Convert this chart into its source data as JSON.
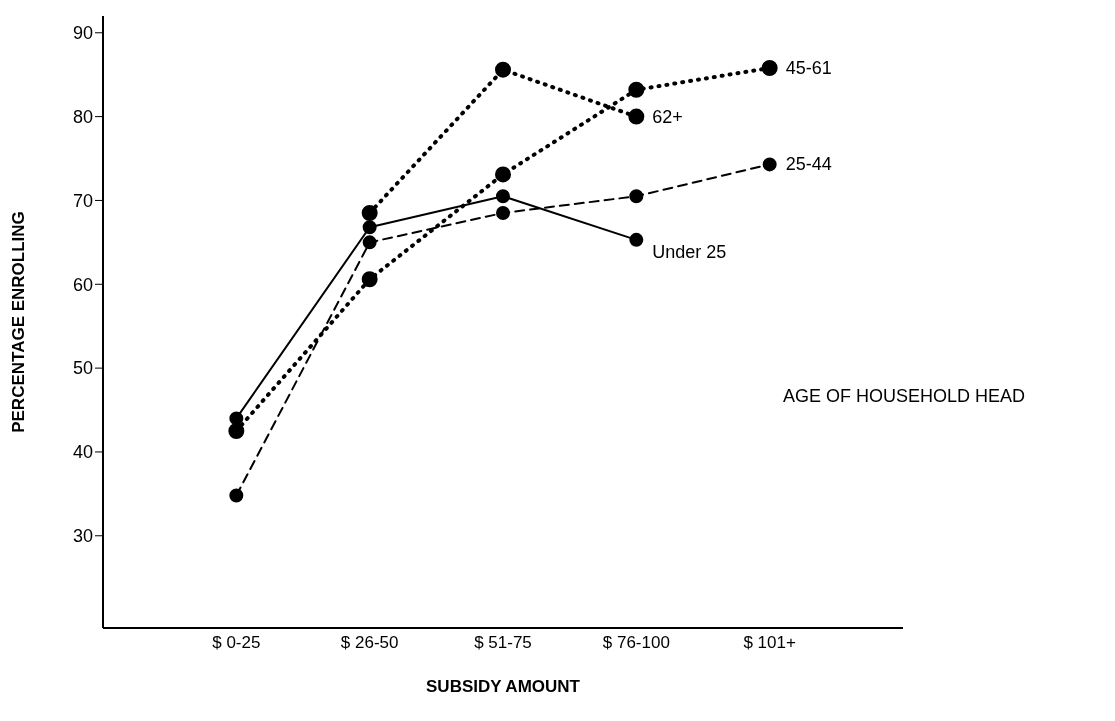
{
  "chart_data": {
    "type": "line",
    "xlabel": "SUBSIDY AMOUNT",
    "ylabel": "PERCENTAGE ENROLLING",
    "categories": [
      "$ 0-25",
      "$ 26-50",
      "$ 51-75",
      "$ 76-100",
      "$ 101+"
    ],
    "series": [
      {
        "name": "Under 25",
        "color": "#000000",
        "line_style": "solid",
        "values": [
          44.0,
          66.8,
          70.5,
          65.3,
          null
        ]
      },
      {
        "name": "25-44",
        "color": "#000000",
        "line_style": "dashed",
        "values": [
          34.8,
          65.0,
          68.5,
          70.5,
          74.3
        ]
      },
      {
        "name": "45-61",
        "color": "#000000",
        "line_style": "dotted",
        "values": [
          42.5,
          60.6,
          73.1,
          83.2,
          85.8
        ]
      },
      {
        "name": "62+",
        "color": "#000000",
        "line_style": "dotted",
        "values": [
          null,
          68.5,
          85.6,
          80.0,
          null
        ]
      }
    ],
    "ylim": [
      19,
      92
    ],
    "yticks": [
      30,
      40,
      50,
      60,
      70,
      80,
      90
    ],
    "marker": "circle",
    "annotations": [
      "AGE OF HOUSEHOLD HEAD"
    ]
  }
}
